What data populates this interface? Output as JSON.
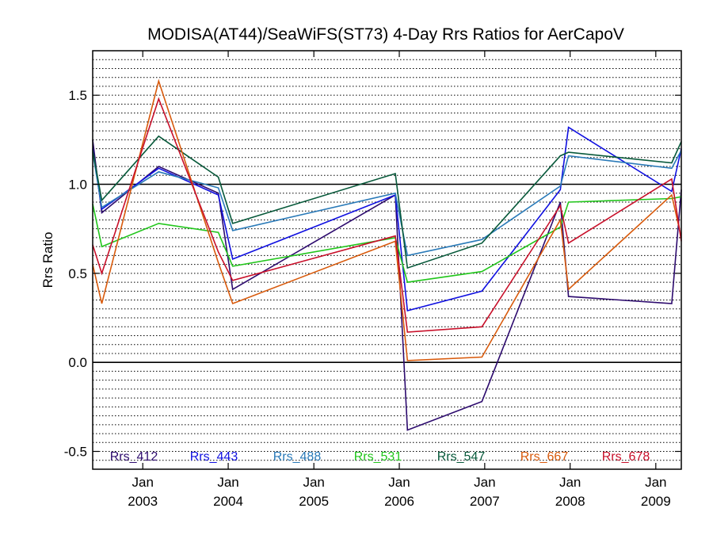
{
  "chart_data": {
    "type": "line",
    "title": "MODISA(AT44)/SeaWiFS(ST73) 4-Day Rrs Ratios for AerCapoV",
    "xlabel": "",
    "ylabel": "Rrs Ratio",
    "xlim": [
      "2002-06-01",
      "2009-04-20"
    ],
    "ylim": [
      -0.6,
      1.75
    ],
    "yticks": [
      "-0.5",
      "0.0",
      "0.5",
      "1.0",
      "1.5"
    ],
    "xticks": [
      {
        "date": "2003-01-01",
        "month": "Jan",
        "year": "2003"
      },
      {
        "date": "2004-01-01",
        "month": "Jan",
        "year": "2004"
      },
      {
        "date": "2005-01-01",
        "month": "Jan",
        "year": "2005"
      },
      {
        "date": "2006-01-01",
        "month": "Jan",
        "year": "2006"
      },
      {
        "date": "2007-01-01",
        "month": "Jan",
        "year": "2007"
      },
      {
        "date": "2008-01-01",
        "month": "Jan",
        "year": "2008"
      },
      {
        "date": "2009-01-01",
        "month": "Jan",
        "year": "2009"
      }
    ],
    "reference_lines": [
      0.0,
      1.0
    ],
    "grid": "horizontal dotted",
    "legend_position": "bottom",
    "series": [
      {
        "name": "Rrs_412",
        "color": "#2d0b6e",
        "points": [
          [
            "2002-06-01",
            1.25
          ],
          [
            "2002-07-10",
            0.84
          ],
          [
            "2003-03-10",
            1.1
          ],
          [
            "2003-11-20",
            0.95
          ],
          [
            "2004-01-20",
            0.41
          ],
          [
            "2005-12-15",
            0.94
          ],
          [
            "2006-02-05",
            -0.38
          ],
          [
            "2006-12-20",
            -0.22
          ],
          [
            "2007-11-20",
            0.9
          ],
          [
            "2007-12-25",
            0.37
          ],
          [
            "2009-03-10",
            0.33
          ],
          [
            "2009-04-20",
            0.97
          ]
        ]
      },
      {
        "name": "Rrs_443",
        "color": "#1010e0",
        "points": [
          [
            "2002-06-01",
            1.2
          ],
          [
            "2002-07-10",
            0.86
          ],
          [
            "2003-03-10",
            1.09
          ],
          [
            "2003-11-20",
            0.94
          ],
          [
            "2004-01-20",
            0.58
          ],
          [
            "2005-12-15",
            0.94
          ],
          [
            "2006-02-05",
            0.29
          ],
          [
            "2006-12-20",
            0.4
          ],
          [
            "2007-11-20",
            0.97
          ],
          [
            "2007-12-25",
            1.32
          ],
          [
            "2009-03-10",
            0.96
          ],
          [
            "2009-04-20",
            1.2
          ]
        ]
      },
      {
        "name": "Rrs_488",
        "color": "#2a7ab8",
        "points": [
          [
            "2002-06-01",
            1.18
          ],
          [
            "2002-07-10",
            0.87
          ],
          [
            "2003-03-10",
            1.07
          ],
          [
            "2003-11-20",
            0.98
          ],
          [
            "2004-01-20",
            0.74
          ],
          [
            "2005-12-15",
            0.95
          ],
          [
            "2006-02-05",
            0.6
          ],
          [
            "2006-12-20",
            0.69
          ],
          [
            "2007-11-20",
            0.99
          ],
          [
            "2007-12-25",
            1.16
          ],
          [
            "2009-03-10",
            1.09
          ],
          [
            "2009-04-20",
            1.19
          ]
        ]
      },
      {
        "name": "Rrs_531",
        "color": "#22c61c",
        "points": [
          [
            "2002-06-01",
            0.89
          ],
          [
            "2002-07-10",
            0.65
          ],
          [
            "2003-03-10",
            0.78
          ],
          [
            "2003-11-20",
            0.73
          ],
          [
            "2004-01-20",
            0.54
          ],
          [
            "2005-12-15",
            0.7
          ],
          [
            "2006-02-05",
            0.45
          ],
          [
            "2006-12-20",
            0.51
          ],
          [
            "2007-11-20",
            0.76
          ],
          [
            "2007-12-25",
            0.9
          ],
          [
            "2009-03-10",
            0.92
          ],
          [
            "2009-04-20",
            0.93
          ]
        ]
      },
      {
        "name": "Rrs_547",
        "color": "#07593a",
        "points": [
          [
            "2002-06-01",
            1.19
          ],
          [
            "2002-07-10",
            0.91
          ],
          [
            "2003-03-10",
            1.27
          ],
          [
            "2003-11-20",
            1.04
          ],
          [
            "2004-01-20",
            0.78
          ],
          [
            "2005-12-15",
            1.06
          ],
          [
            "2006-02-05",
            0.53
          ],
          [
            "2006-12-20",
            0.67
          ],
          [
            "2007-11-20",
            1.16
          ],
          [
            "2007-12-25",
            1.18
          ],
          [
            "2009-03-10",
            1.12
          ],
          [
            "2009-04-20",
            1.24
          ]
        ]
      },
      {
        "name": "Rrs_667",
        "color": "#d85a0c",
        "points": [
          [
            "2002-06-01",
            0.55
          ],
          [
            "2002-07-10",
            0.33
          ],
          [
            "2003-03-10",
            1.58
          ],
          [
            "2003-11-20",
            0.56
          ],
          [
            "2004-01-20",
            0.33
          ],
          [
            "2005-12-15",
            0.68
          ],
          [
            "2006-02-05",
            0.01
          ],
          [
            "2006-12-20",
            0.03
          ],
          [
            "2007-11-20",
            0.8
          ],
          [
            "2007-12-25",
            0.41
          ],
          [
            "2009-03-10",
            0.94
          ],
          [
            "2009-04-20",
            0.7
          ]
        ]
      },
      {
        "name": "Rrs_678",
        "color": "#c8102a",
        "points": [
          [
            "2002-06-01",
            0.66
          ],
          [
            "2002-07-10",
            0.5
          ],
          [
            "2003-03-10",
            1.48
          ],
          [
            "2003-11-20",
            0.62
          ],
          [
            "2004-01-20",
            0.46
          ],
          [
            "2005-12-15",
            0.71
          ],
          [
            "2006-02-05",
            0.17
          ],
          [
            "2006-12-20",
            0.2
          ],
          [
            "2007-11-20",
            0.88
          ],
          [
            "2007-12-25",
            0.67
          ],
          [
            "2009-03-10",
            1.03
          ],
          [
            "2009-04-20",
            0.68
          ]
        ]
      }
    ]
  }
}
